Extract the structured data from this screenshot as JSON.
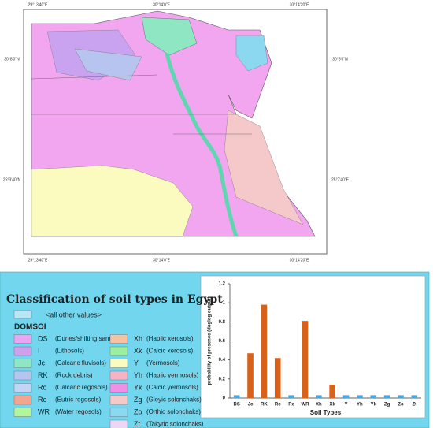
{
  "map": {
    "top_labels": [
      "29°13'40\"E",
      "30°14'0\"E",
      "30°14'20\"E"
    ],
    "bottom_labels": [
      "29°13'40\"E",
      "30°14'0\"E",
      "30°14'20\"E"
    ],
    "left_labels": [
      "30°8'0\"N",
      "25°3'40\"N"
    ],
    "right_labels": [
      "30°8'0\"N",
      "25°7'40\"E"
    ]
  },
  "legend": {
    "title": "Classification of soil types in Egypt",
    "other": "<all other values>",
    "heading": "DOMSOI",
    "items": [
      {
        "code": "DS",
        "name": "(Dunes/shifting sand)",
        "color": "#e9a5f2"
      },
      {
        "code": "I",
        "name": "(Lithosols)",
        "color": "#cfa0ee"
      },
      {
        "code": "Jc",
        "name": "(Calcaric fluvisols)",
        "color": "#8ee6c3"
      },
      {
        "code": "RK",
        "name": "(Rock debris)",
        "color": "#b7c4f0"
      },
      {
        "code": "Rc",
        "name": "(Calcaric regosols)",
        "color": "#c3d4f5"
      },
      {
        "code": "Re",
        "name": "(Eutric regosols)",
        "color": "#f5a58f"
      },
      {
        "code": "WR",
        "name": "(Water regosols)",
        "color": "#b5f59a"
      },
      {
        "code": "Xh",
        "name": "(Haplic xerosols)",
        "color": "#f5c3a3"
      },
      {
        "code": "Xk",
        "name": "(Calcic xerosols)",
        "color": "#9bf0a0"
      },
      {
        "code": "Y",
        "name": "(Yermosols)",
        "color": "#fbfbc0"
      },
      {
        "code": "Yh",
        "name": "(Haplic yermosols)",
        "color": "#f7b3c5"
      },
      {
        "code": "Yk",
        "name": "(Calcic yermosols)",
        "color": "#f08fe6"
      },
      {
        "code": "Zg",
        "name": "(Gleyic solonchaks)",
        "color": "#f5c9c9"
      },
      {
        "code": "Zo",
        "name": "(Orthic solonchaks)",
        "color": "#8cd8f0"
      },
      {
        "code": "Zt",
        "name": "(Takyric solonchaks)",
        "color": "#ecd5f5"
      }
    ]
  },
  "chart_data": {
    "type": "bar",
    "x_label": "Soil Types",
    "y_label": "probability of presence (doglog output)",
    "categories": [
      "DS",
      "Jc",
      "RK",
      "Rc",
      "Re",
      "WR",
      "Xh",
      "Xk",
      "Y",
      "Yh",
      "Yk",
      "Zg",
      "Zo",
      "Zt"
    ],
    "values": [
      0.03,
      0.47,
      0.98,
      0.42,
      0.03,
      0.81,
      0.03,
      0.14,
      0.03,
      0.03,
      0.03,
      0.03,
      0.03,
      0.03
    ],
    "colors": [
      "#4ea5d9",
      "#d9621a",
      "#d9621a",
      "#d9621a",
      "#4ea5d9",
      "#d9621a",
      "#4ea5d9",
      "#d9621a",
      "#4ea5d9",
      "#4ea5d9",
      "#4ea5d9",
      "#4ea5d9",
      "#4ea5d9",
      "#4ea5d9"
    ],
    "ylim": [
      0,
      1.2
    ],
    "yticks": [
      0,
      0.2,
      0.4,
      0.6,
      0.8,
      1,
      1.2
    ]
  }
}
